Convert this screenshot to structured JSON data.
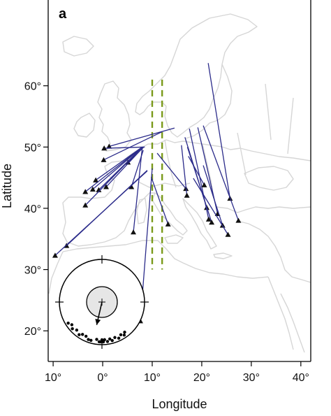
{
  "panel_label": "a",
  "colors": {
    "track": "#2b2b8a",
    "marker": "#111111",
    "barrier": "#7a9a1a",
    "coast": "#d6d6d6",
    "rose_fill": "#e6e6e6"
  },
  "chart_data": {
    "type": "map",
    "xlabel": "Longitude",
    "ylabel": "Latitude",
    "xlim": [
      -11,
      42
    ],
    "ylim": [
      15,
      74
    ],
    "x_ticks": [
      {
        "value": -10,
        "label": "10°"
      },
      {
        "value": 0,
        "label": "0°"
      },
      {
        "value": 10,
        "label": "10°"
      },
      {
        "value": 20,
        "label": "20°"
      },
      {
        "value": 30,
        "label": "30°"
      },
      {
        "value": 40,
        "label": "40°"
      }
    ],
    "y_ticks": [
      {
        "value": 20,
        "label": "20°"
      },
      {
        "value": 30,
        "label": "30°"
      },
      {
        "value": 40,
        "label": "40°"
      },
      {
        "value": 50,
        "label": "50°"
      },
      {
        "value": 60,
        "label": "60°"
      }
    ],
    "barrier_lines": [
      {
        "lon": 10,
        "lat_from": 30,
        "lat_to": 61
      },
      {
        "lon": 12,
        "lat_from": 30,
        "lat_to": 61
      }
    ],
    "tracks": [
      {
        "from": [
          14.5,
          53.1
        ],
        "to": [
          1.3,
          50.1
        ]
      },
      {
        "from": [
          8.5,
          50.0
        ],
        "to": [
          0.3,
          49.8
        ]
      },
      {
        "from": [
          12.0,
          52.5
        ],
        "to": [
          0.2,
          47.9
        ]
      },
      {
        "from": [
          8.3,
          50.0
        ],
        "to": [
          5.1,
          47.5
        ]
      },
      {
        "from": [
          8.0,
          50.0
        ],
        "to": [
          -0.8,
          43.0
        ]
      },
      {
        "from": [
          8.0,
          50.0
        ],
        "to": [
          -1.4,
          44.6
        ]
      },
      {
        "from": [
          8.0,
          50.0
        ],
        "to": [
          -3.5,
          42.7
        ]
      },
      {
        "from": [
          8.0,
          50.0
        ],
        "to": [
          -2.0,
          43.1
        ]
      },
      {
        "from": [
          8.0,
          49.8
        ],
        "to": [
          0.7,
          43.5
        ]
      },
      {
        "from": [
          8.2,
          49.5
        ],
        "to": [
          5.8,
          43.5
        ]
      },
      {
        "from": [
          8.0,
          50.0
        ],
        "to": [
          -3.5,
          40.5
        ]
      },
      {
        "from": [
          8.0,
          50.0
        ],
        "to": [
          6.2,
          36.1
        ]
      },
      {
        "from": [
          9.0,
          46.2
        ],
        "to": [
          -7.3,
          33.9
        ]
      },
      {
        "from": [
          9.0,
          46.1
        ],
        "to": [
          -9.6,
          32.3
        ]
      },
      {
        "from": [
          10.0,
          46.5
        ],
        "to": [
          7.6,
          21.6
        ]
      },
      {
        "from": [
          9.8,
          45.1
        ],
        "to": [
          13.2,
          37.4
        ]
      },
      {
        "from": [
          11.0,
          49.0
        ],
        "to": [
          16.8,
          43.2
        ]
      },
      {
        "from": [
          15.9,
          50.3
        ],
        "to": [
          17.0,
          42.1
        ]
      },
      {
        "from": [
          16.6,
          51.6
        ],
        "to": [
          21.0,
          40.1
        ]
      },
      {
        "from": [
          17.5,
          53.0
        ],
        "to": [
          21.4,
          38.2
        ]
      },
      {
        "from": [
          19.2,
          53.2
        ],
        "to": [
          23.2,
          39.1
        ]
      },
      {
        "from": [
          21.3,
          63.7
        ],
        "to": [
          25.7,
          41.6
        ]
      },
      {
        "from": [
          20.3,
          53.5
        ],
        "to": [
          27.4,
          38.0
        ]
      },
      {
        "from": [
          17.1,
          50.0
        ],
        "to": [
          22.0,
          37.7
        ]
      },
      {
        "from": [
          17.3,
          48.5
        ],
        "to": [
          20.5,
          43.8
        ]
      },
      {
        "from": [
          20.3,
          47.0
        ],
        "to": [
          24.2,
          37.2
        ]
      },
      {
        "from": [
          18.3,
          44.9
        ],
        "to": [
          25.3,
          35.7
        ]
      }
    ],
    "circular_inset": {
      "mean_direction_deg": 193,
      "mean_vector_length": 0.55,
      "bearings_deg": [
        215,
        222,
        228,
        233,
        200,
        188,
        184,
        180,
        178,
        176,
        172,
        168,
        165,
        160,
        155,
        150,
        146,
        143,
        238,
        211,
        196,
        205,
        182
      ]
    }
  }
}
